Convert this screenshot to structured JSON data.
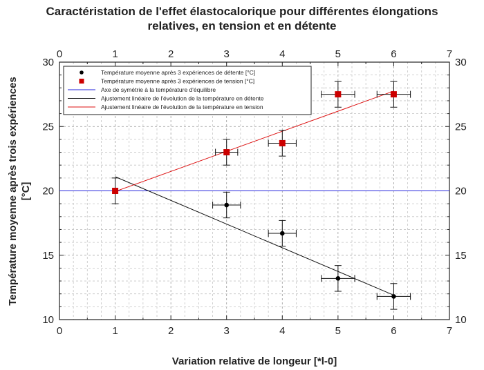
{
  "chart_data": {
    "type": "scatter",
    "title_line1": "Caractéristation de l'effet élastocalorique pour différentes élongations",
    "title_line2": "relatives, en tension et en détente",
    "xlabel": "Variation relative de longeur [*l-0]",
    "ylabel_line1": "Température moyenne après trois expériences",
    "ylabel_line2": "[°C]",
    "xlim": [
      0,
      7
    ],
    "ylim": [
      10,
      30
    ],
    "x_ticks": [
      0,
      1,
      2,
      3,
      4,
      5,
      6,
      7
    ],
    "y_ticks": [
      10,
      15,
      20,
      25,
      30
    ],
    "grid": true,
    "legend_position": "top-left",
    "series": [
      {
        "name": "Température moyenne après 3 expériences de détente [°C]",
        "marker": "circle",
        "color": "#000000",
        "points": [
          {
            "x": 3,
            "y": 18.9,
            "xerr": 0.25,
            "yerr": 1.0
          },
          {
            "x": 4,
            "y": 16.7,
            "xerr": 0.25,
            "yerr": 1.0
          },
          {
            "x": 5,
            "y": 13.2,
            "xerr": 0.3,
            "yerr": 1.0
          },
          {
            "x": 6,
            "y": 11.8,
            "xerr": 0.3,
            "yerr": 1.0
          }
        ]
      },
      {
        "name": "Température moyenne après 3 expériences de tension [°C]",
        "marker": "square",
        "color": "#cc0000",
        "points": [
          {
            "x": 1,
            "y": 20.0,
            "xerr": 0,
            "yerr": 1.0
          },
          {
            "x": 3,
            "y": 23.0,
            "xerr": 0.2,
            "yerr": 1.0
          },
          {
            "x": 4,
            "y": 23.7,
            "xerr": 0.25,
            "yerr": 1.0
          },
          {
            "x": 5,
            "y": 27.5,
            "xerr": 0.3,
            "yerr": 1.0
          },
          {
            "x": 6,
            "y": 27.5,
            "xerr": 0.3,
            "yerr": 1.0
          }
        ]
      },
      {
        "name": "Axe de symétrie à la température d'équilibre",
        "type": "line",
        "color": "#2222dd",
        "x": [
          0,
          7
        ],
        "y": [
          20,
          20
        ]
      },
      {
        "name": "Ajustement linéaire de l'évolution de la température en détente",
        "type": "line",
        "color": "#111111",
        "x": [
          1,
          6
        ],
        "y": [
          21.1,
          11.9
        ]
      },
      {
        "name": "Ajustement linéaire de l'évolution de la température en tension",
        "type": "line",
        "color": "#dd1111",
        "x": [
          1,
          6
        ],
        "y": [
          19.95,
          27.75
        ]
      }
    ]
  }
}
